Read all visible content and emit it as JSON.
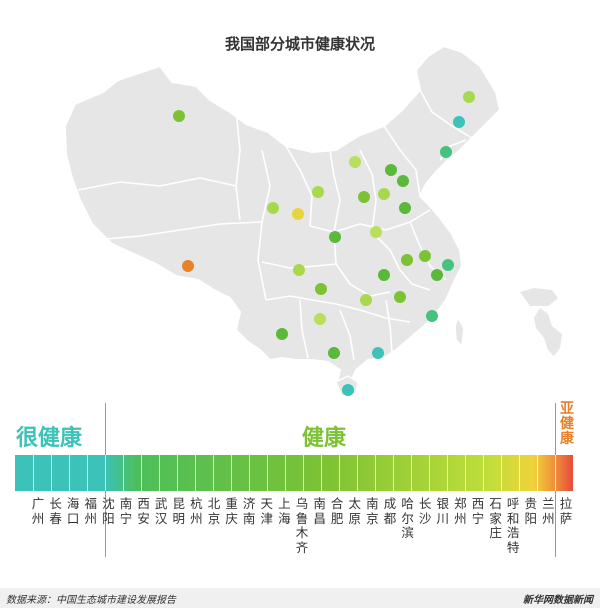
{
  "title": "我国部分城市健康状况",
  "categories": {
    "very_healthy": "很健康",
    "healthy": "健康",
    "sub_healthy": "亚健康"
  },
  "colors": {
    "very_healthy": "#3cc2b8",
    "healthy": "#7cc234",
    "sub_healthy": "#e8812a",
    "province_fill": "#e6e6e6",
    "province_border": "#ffffff"
  },
  "cities": [
    "广州",
    "长春",
    "海口",
    "福州",
    "沈阳",
    "南宁",
    "西安",
    "武汉",
    "昆明",
    "杭州",
    "北京",
    "重庆",
    "济南",
    "天津",
    "上海",
    "乌鲁木齐",
    "南昌",
    "合肥",
    "太原",
    "南京",
    "成都",
    "哈尔滨",
    "长沙",
    "银川",
    "郑州",
    "西宁",
    "石家庄",
    "呼和浩特",
    "贵阳",
    "兰州",
    "拉萨"
  ],
  "footer": {
    "source": "数据来源：中国生态城市建设发展报告",
    "brand": "新华网数据新闻"
  }
}
